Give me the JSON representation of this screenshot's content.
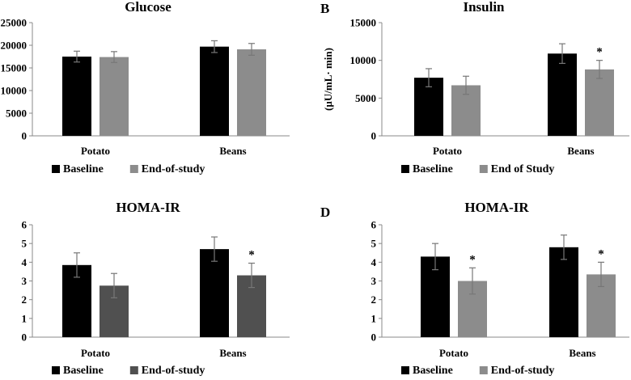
{
  "chart_data": [
    {
      "type": "bar",
      "panel_letter": "",
      "title": "Glucose",
      "ylabel": "",
      "categories": [
        "Potato",
        "Beans"
      ],
      "ylim": [
        0,
        25000
      ],
      "yticks": [
        0,
        5000,
        10000,
        15000,
        20000,
        25000
      ],
      "series": [
        {
          "name": "Baseline",
          "color": "#000000",
          "values": [
            17500,
            19700
          ],
          "errors": [
            1200,
            1300
          ]
        },
        {
          "name": "End-of-study",
          "color": "#8c8c8c",
          "values": [
            17400,
            19100
          ],
          "errors": [
            1200,
            1300
          ]
        }
      ],
      "annotations": [],
      "legend_position": "bottom"
    },
    {
      "type": "bar",
      "panel_letter": "B",
      "title": "Insulin",
      "ylabel": "(µU/mL· min)",
      "categories": [
        "Potato",
        "Beans"
      ],
      "ylim": [
        0,
        15000
      ],
      "yticks": [
        0,
        5000,
        10000,
        15000
      ],
      "series": [
        {
          "name": "Baseline",
          "color": "#000000",
          "values": [
            7700,
            10900
          ],
          "errors": [
            1200,
            1300
          ]
        },
        {
          "name": "End of Study",
          "color": "#8c8c8c",
          "values": [
            6700,
            8800
          ],
          "errors": [
            1200,
            1200
          ]
        }
      ],
      "annotations": [
        {
          "category": "Beans",
          "series": "End of Study",
          "text": "*"
        }
      ],
      "legend_position": "bottom"
    },
    {
      "type": "bar",
      "panel_letter": "",
      "title": "HOMA-IR",
      "ylabel": "",
      "categories": [
        "Potato",
        "Beans"
      ],
      "ylim": [
        0,
        6
      ],
      "yticks": [
        0,
        1,
        2,
        3,
        4,
        5,
        6
      ],
      "series": [
        {
          "name": "Baseline",
          "color": "#000000",
          "values": [
            3.85,
            4.7
          ],
          "errors": [
            0.65,
            0.65
          ]
        },
        {
          "name": "End-of-study",
          "color": "#505050",
          "values": [
            2.75,
            3.3
          ],
          "errors": [
            0.65,
            0.65
          ]
        }
      ],
      "annotations": [
        {
          "category": "Beans",
          "series": "End-of-study",
          "text": "*"
        }
      ],
      "legend_position": "bottom"
    },
    {
      "type": "bar",
      "panel_letter": "D",
      "title": "HOMA-IR",
      "ylabel": "",
      "categories": [
        "Potato",
        "Beans"
      ],
      "ylim": [
        0,
        6
      ],
      "yticks": [
        0,
        1,
        2,
        3,
        4,
        5,
        6
      ],
      "series": [
        {
          "name": "Baseline",
          "color": "#000000",
          "values": [
            4.3,
            4.8
          ],
          "errors": [
            0.7,
            0.65
          ]
        },
        {
          "name": "End-of-study",
          "color": "#8c8c8c",
          "values": [
            3.0,
            3.35
          ],
          "errors": [
            0.7,
            0.65
          ]
        }
      ],
      "annotations": [
        {
          "category": "Potato",
          "series": "End-of-study",
          "text": "*"
        },
        {
          "category": "Beans",
          "series": "End-of-study",
          "text": "*"
        }
      ],
      "legend_position": "bottom"
    }
  ]
}
